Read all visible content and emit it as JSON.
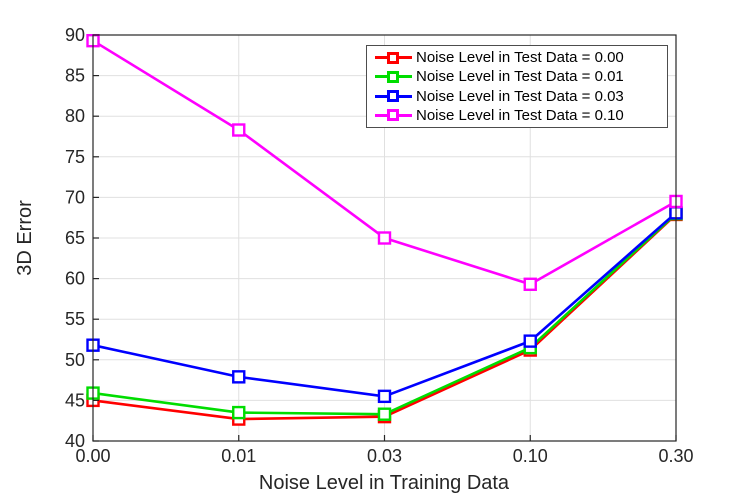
{
  "chart_data": {
    "type": "line",
    "title": "",
    "xlabel": "Noise Level in Training Data",
    "ylabel": "3D Error",
    "x_tick_labels": [
      "0.00",
      "0.01",
      "0.03",
      "0.10",
      "0.30"
    ],
    "y_ticks": [
      40,
      45,
      50,
      55,
      60,
      65,
      70,
      75,
      80,
      85,
      90
    ],
    "y_tick_labels": [
      "40",
      "45",
      "50",
      "55",
      "60",
      "65",
      "70",
      "75",
      "80",
      "85",
      "90"
    ],
    "ylim": [
      40,
      90
    ],
    "x_spacing": "categorical-even",
    "grid": true,
    "marker": "open-square",
    "legend_position": "upper-right-inside",
    "series": [
      {
        "name": "Noise Level in Test Data = 0.00",
        "color": "#ff0000",
        "values": [
          45.0,
          42.7,
          43.0,
          51.2,
          67.9
        ]
      },
      {
        "name": "Noise Level in Test Data = 0.01",
        "color": "#00dd00",
        "values": [
          45.9,
          43.5,
          43.3,
          51.5,
          68.0
        ]
      },
      {
        "name": "Noise Level in Test Data = 0.03",
        "color": "#0000ff",
        "values": [
          51.8,
          47.9,
          45.5,
          52.3,
          68.1
        ]
      },
      {
        "name": "Noise Level in Test Data = 0.10",
        "color": "#ff00ff",
        "values": [
          89.3,
          78.3,
          65.0,
          59.3,
          69.5
        ]
      }
    ],
    "colors": {
      "background": "#ffffff",
      "axis": "#262626",
      "grid": "#e0e0e0",
      "legend_border": "#4d4d4d",
      "tick_text": "#262626",
      "legend_text": "#000000"
    }
  }
}
